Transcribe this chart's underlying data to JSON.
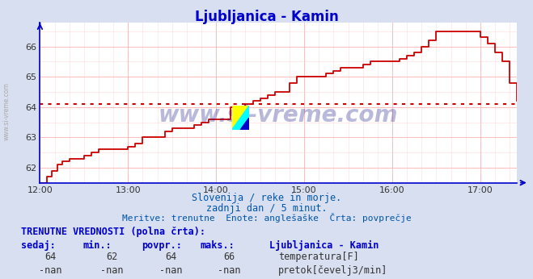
{
  "title": "Ljubljanica - Kamin",
  "title_color": "#0000cc",
  "title_fontsize": 12,
  "bg_color": "#d8dff0",
  "plot_bg_color": "#ffffff",
  "ylim": [
    61.5,
    66.8
  ],
  "xlim_minutes": [
    0,
    325
  ],
  "yticks": [
    62,
    63,
    64,
    65,
    66
  ],
  "xtick_labels": [
    "12:00",
    "13:00",
    "14:00",
    "15:00",
    "16:00",
    "17:00"
  ],
  "xtick_minutes": [
    0,
    60,
    120,
    180,
    240,
    300
  ],
  "avg_line_y": 64.1,
  "avg_line_color": "#cc0000",
  "line_color": "#cc0000",
  "axis_color": "#0000cc",
  "grid_color_major": "#ffaaaa",
  "grid_color_minor": "#ffcccc",
  "watermark": "www.si-vreme.com",
  "watermark_color": "#1a1a8c",
  "watermark_alpha": 0.3,
  "subtitle1": "Slovenija / reke in morje.",
  "subtitle2": "zadnji dan / 5 minut.",
  "subtitle3": "Meritve: trenutne  Enote: anglešaške  Črta: povprečje",
  "subtitle_color": "#0055aa",
  "footer_title": "TRENUTNE VREDNOSTI (polna črta):",
  "footer_color": "#0000cc",
  "col_headers": [
    "sedaj:",
    "min.:",
    "povpr.:",
    "maks.:"
  ],
  "col_values_temp": [
    "64",
    "62",
    "64",
    "66"
  ],
  "col_values_pretok": [
    "-nan",
    "-nan",
    "-nan",
    "-nan"
  ],
  "legend_label_temp": "temperatura[F]",
  "legend_label_pretok": "pretok[čevelj3/min]",
  "legend_color_temp": "#cc0000",
  "legend_color_pretok": "#008800",
  "station_label": "Ljubljanica - Kamin",
  "left_label": "www.si-vreme.com",
  "left_label_color": "#aaaaaa",
  "temp_x": [
    0,
    2,
    5,
    8,
    12,
    15,
    20,
    25,
    30,
    35,
    40,
    45,
    50,
    55,
    60,
    65,
    70,
    75,
    80,
    85,
    90,
    95,
    100,
    105,
    110,
    115,
    120,
    125,
    130,
    135,
    140,
    145,
    150,
    155,
    160,
    165,
    170,
    175,
    180,
    185,
    190,
    195,
    200,
    205,
    210,
    215,
    220,
    225,
    230,
    235,
    240,
    245,
    250,
    255,
    260,
    265,
    270,
    275,
    280,
    285,
    290,
    295,
    300,
    305,
    310,
    315,
    320,
    325
  ],
  "temp_y": [
    61.5,
    61.5,
    61.7,
    61.9,
    62.1,
    62.2,
    62.3,
    62.3,
    62.4,
    62.5,
    62.6,
    62.6,
    62.6,
    62.6,
    62.7,
    62.8,
    63.0,
    63.0,
    63.0,
    63.2,
    63.3,
    63.3,
    63.3,
    63.4,
    63.5,
    63.6,
    63.6,
    63.6,
    64.0,
    64.0,
    64.1,
    64.2,
    64.3,
    64.4,
    64.5,
    64.5,
    64.8,
    65.0,
    65.0,
    65.0,
    65.0,
    65.1,
    65.2,
    65.3,
    65.3,
    65.3,
    65.4,
    65.5,
    65.5,
    65.5,
    65.5,
    65.6,
    65.7,
    65.8,
    66.0,
    66.2,
    66.5,
    66.5,
    66.5,
    66.5,
    66.5,
    66.5,
    66.3,
    66.1,
    65.8,
    65.5,
    64.8,
    64.2
  ]
}
